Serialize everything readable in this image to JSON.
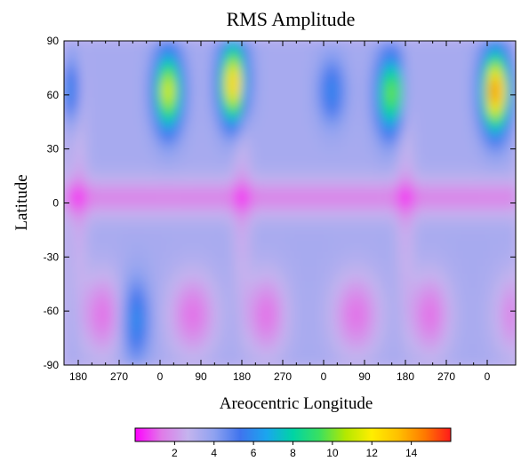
{
  "chart_data": {
    "type": "heatmap",
    "title": "RMS Amplitude",
    "xlabel": "Areocentric Longitude",
    "ylabel": "Latitude",
    "x_tick_labels": [
      "180",
      "270",
      "0",
      "90",
      "180",
      "270",
      "0",
      "90",
      "180",
      "270",
      "0"
    ],
    "y_tick_labels": [
      "90",
      "60",
      "30",
      "0",
      "-30",
      "-60",
      "-90"
    ],
    "yticks": [
      90,
      60,
      30,
      0,
      -30,
      -60,
      -90
    ],
    "ylim": [
      -90,
      90
    ],
    "colorbar": {
      "range": [
        0,
        16
      ],
      "tick_values": [
        2,
        4,
        6,
        8,
        10,
        12,
        14
      ],
      "tick_labels": [
        "2",
        "4",
        "6",
        "8",
        "10",
        "12",
        "14"
      ],
      "colors": [
        "#ff00ff",
        "#e07ae8",
        "#c4b4ee",
        "#8fa2f0",
        "#3f74ee",
        "#1aa6ee",
        "#00d4a4",
        "#3ae060",
        "#b4e800",
        "#ffee00",
        "#ffc000",
        "#ff7a00",
        "#ff1a1a"
      ]
    },
    "peaks": [
      {
        "longitude_cycle_index": 0.55,
        "latitude": 62,
        "value": 9
      },
      {
        "longitude_cycle_index": 0.95,
        "latitude": 68,
        "value": 11
      },
      {
        "longitude_cycle_index": 1.9,
        "latitude": 60,
        "value": 8
      },
      {
        "longitude_cycle_index": 2.55,
        "latitude": 62,
        "value": 12
      },
      {
        "longitude_cycle_index": 2.95,
        "latitude": 68,
        "value": 12
      },
      {
        "longitude_cycle_index": 0.35,
        "latitude": -65,
        "value": 6
      }
    ]
  }
}
